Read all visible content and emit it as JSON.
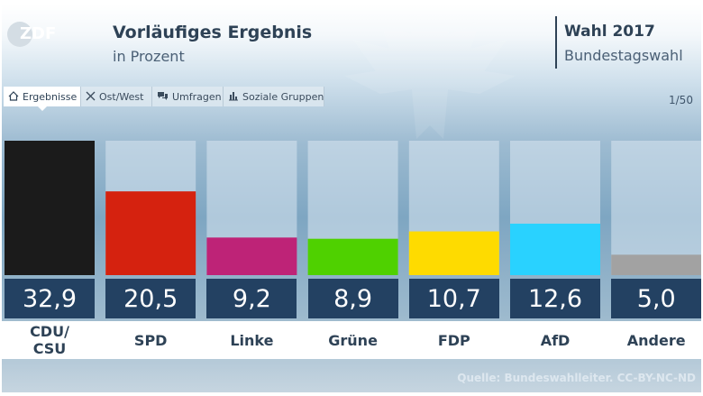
{
  "header": {
    "logo_text": "ZDF",
    "title": "Vorläufiges Ergebnis",
    "subtitle": "in Prozent",
    "election_title": "Wahl 2017",
    "election_subtitle": "Bundestagswahl"
  },
  "tabs": [
    {
      "label": "Ergebnisse",
      "icon": "home-icon",
      "active": true
    },
    {
      "label": "Ost/West",
      "icon": "cross-icon",
      "active": false
    },
    {
      "label": "Umfragen",
      "icon": "speech-bubbles-icon",
      "active": false
    },
    {
      "label": "Soziale Gruppen",
      "icon": "bar-chart-icon",
      "active": false
    }
  ],
  "counter": "1/50",
  "source": "Quelle: Bundeswahlleiter. CC-BY-NC-ND",
  "chart_data": {
    "type": "bar",
    "title": "Vorläufiges Ergebnis",
    "subtitle": "in Prozent",
    "xlabel": "",
    "ylabel": "",
    "ylim": [
      0,
      32.9
    ],
    "grid": false,
    "categories": [
      "CDU/\nCSU",
      "SPD",
      "Linke",
      "Grüne",
      "FDP",
      "AfD",
      "Andere"
    ],
    "values": [
      32.9,
      20.5,
      9.2,
      8.9,
      10.7,
      12.6,
      5.0
    ],
    "value_labels": [
      "32,9",
      "20,5",
      "9,2",
      "8,9",
      "10,7",
      "12,6",
      "5,0"
    ],
    "colors": [
      "#1b1b1b",
      "#d5220f",
      "#be2377",
      "#4fd100",
      "#fedb00",
      "#29d2ff",
      "#a2a2a2"
    ],
    "track_color": "#d8e6f0",
    "value_box_color": "#234162"
  }
}
